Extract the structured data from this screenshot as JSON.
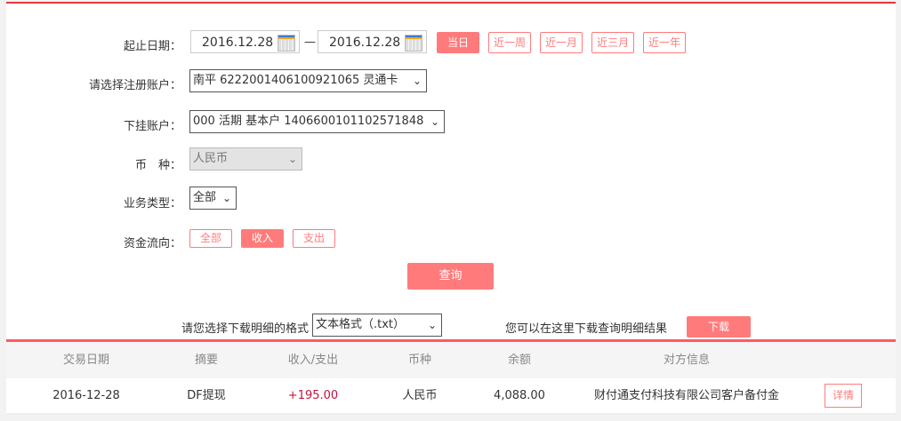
{
  "form": {
    "date_label": "起止日期：",
    "start_date": "2016.12.28",
    "end_date": "2016.12.28",
    "dash": "—",
    "quick_ranges": [
      "当日",
      "近一周",
      "近一月",
      "近三月",
      "近一年"
    ],
    "account_label": "请选择注册账户：",
    "account_value": "南平 6222001406100921065 灵通卡",
    "sub_account_label": "下挂账户：",
    "sub_account_value": "000 活期 基本户 1406600101102571848",
    "currency_label": "币　种：",
    "currency_value": "人民币",
    "biz_type_label": "业务类型：",
    "biz_type_value": "全部",
    "flow_label": "资金流向：",
    "flow_options": [
      "全部",
      "收入",
      "支出"
    ],
    "flow_selected": "收入",
    "query_label": "查询"
  },
  "download": {
    "format_label": "请您选择下载明细的格式",
    "format_value": "文本格式（.txt）",
    "hint": "您可以在这里下载查询明细结果",
    "button": "下载"
  },
  "table": {
    "headers": [
      "交易日期",
      "摘要",
      "收入/支出",
      "币种",
      "余额",
      "对方信息"
    ],
    "rows": [
      {
        "date": "2016-12-28",
        "summary": "DF提现",
        "amount": "+195.00",
        "currency": "人民币",
        "balance": "4,088.00",
        "counterparty": "财付通支付科技有限公司客户备付金",
        "action": "详情"
      }
    ]
  },
  "colors": {
    "accent": "#ff7b7b",
    "top_bar": "#e5393e",
    "amount": "#c0143c"
  }
}
